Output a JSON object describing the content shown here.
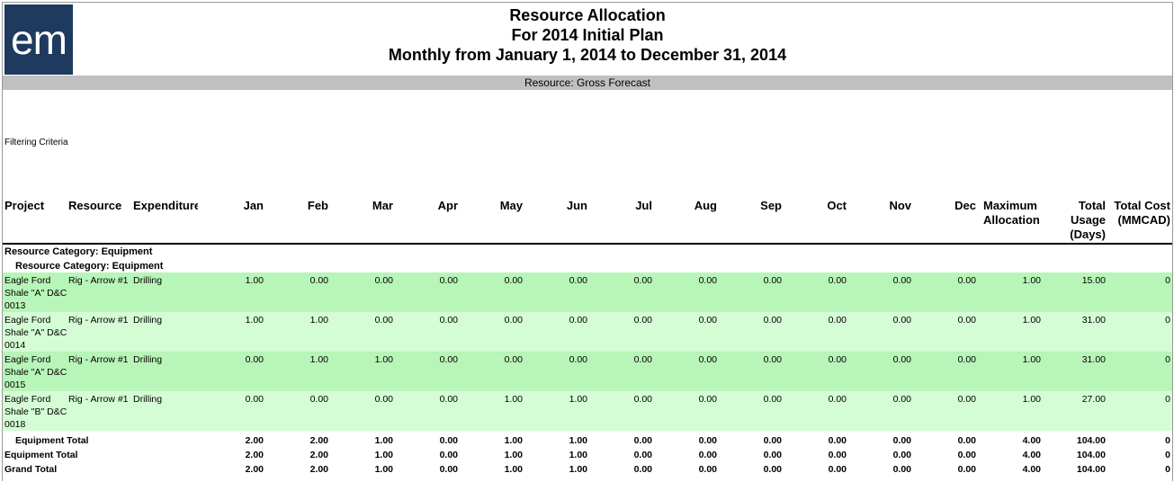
{
  "logo": "em",
  "report": {
    "title": "Resource Allocation",
    "subtitle": "For 2014 Initial Plan",
    "period": "Monthly from January 1, 2014 to December 31, 2014",
    "resource_bar": "Resource: Gross Forecast",
    "filtering_label": "Filtering Criteria"
  },
  "columns": {
    "project": "Project",
    "resource": "Resource",
    "expenditure": "Expenditure",
    "jan": "Jan",
    "feb": "Feb",
    "mar": "Mar",
    "apr": "Apr",
    "may": "May",
    "jun": "Jun",
    "jul": "Jul",
    "aug": "Aug",
    "sep": "Sep",
    "oct": "Oct",
    "nov": "Nov",
    "dec": "Dec",
    "max_alloc_1": "Maximum",
    "max_alloc_2": "Allocation",
    "total_usage_1": "Total",
    "total_usage_2": "Usage",
    "total_usage_3": "(Days)",
    "total_cost_1": "Total Cost",
    "total_cost_2": "(MMCAD)"
  },
  "categories": {
    "outer": "Resource Category: Equipment",
    "inner": "Resource Category: Equipment"
  },
  "rows": [
    {
      "p1": "Eagle Ford",
      "p2": "Shale \"A\" D&C",
      "p3": "0013",
      "resource": "Rig - Arrow #1",
      "expenditure": "Drilling",
      "months": [
        "1.00",
        "0.00",
        "0.00",
        "0.00",
        "0.00",
        "0.00",
        "0.00",
        "0.00",
        "0.00",
        "0.00",
        "0.00",
        "0.00"
      ],
      "max": "1.00",
      "usage": "15.00",
      "cost": "0"
    },
    {
      "p1": "Eagle Ford",
      "p2": "Shale \"A\" D&C",
      "p3": "0014",
      "resource": "Rig - Arrow #1",
      "expenditure": "Drilling",
      "months": [
        "1.00",
        "1.00",
        "0.00",
        "0.00",
        "0.00",
        "0.00",
        "0.00",
        "0.00",
        "0.00",
        "0.00",
        "0.00",
        "0.00"
      ],
      "max": "1.00",
      "usage": "31.00",
      "cost": "0"
    },
    {
      "p1": "Eagle Ford",
      "p2": "Shale \"A\" D&C",
      "p3": "0015",
      "resource": "Rig - Arrow #1",
      "expenditure": "Drilling",
      "months": [
        "0.00",
        "1.00",
        "1.00",
        "0.00",
        "0.00",
        "0.00",
        "0.00",
        "0.00",
        "0.00",
        "0.00",
        "0.00",
        "0.00"
      ],
      "max": "1.00",
      "usage": "31.00",
      "cost": "0"
    },
    {
      "p1": "Eagle Ford",
      "p2": "Shale \"B\" D&C",
      "p3": "0018",
      "resource": "Rig - Arrow #1",
      "expenditure": "Drilling",
      "months": [
        "0.00",
        "0.00",
        "0.00",
        "0.00",
        "1.00",
        "1.00",
        "0.00",
        "0.00",
        "0.00",
        "0.00",
        "0.00",
        "0.00"
      ],
      "max": "1.00",
      "usage": "27.00",
      "cost": "0"
    }
  ],
  "totals": [
    {
      "label": "Equipment Total",
      "indent": true,
      "months": [
        "2.00",
        "2.00",
        "1.00",
        "0.00",
        "1.00",
        "1.00",
        "0.00",
        "0.00",
        "0.00",
        "0.00",
        "0.00",
        "0.00"
      ],
      "max": "4.00",
      "usage": "104.00",
      "cost": "0"
    },
    {
      "label": "Equipment Total",
      "indent": false,
      "months": [
        "2.00",
        "2.00",
        "1.00",
        "0.00",
        "1.00",
        "1.00",
        "0.00",
        "0.00",
        "0.00",
        "0.00",
        "0.00",
        "0.00"
      ],
      "max": "4.00",
      "usage": "104.00",
      "cost": "0"
    },
    {
      "label": "Grand Total",
      "indent": false,
      "months": [
        "2.00",
        "2.00",
        "1.00",
        "0.00",
        "1.00",
        "1.00",
        "0.00",
        "0.00",
        "0.00",
        "0.00",
        "0.00",
        "0.00"
      ],
      "max": "4.00",
      "usage": "104.00",
      "cost": "0"
    }
  ]
}
